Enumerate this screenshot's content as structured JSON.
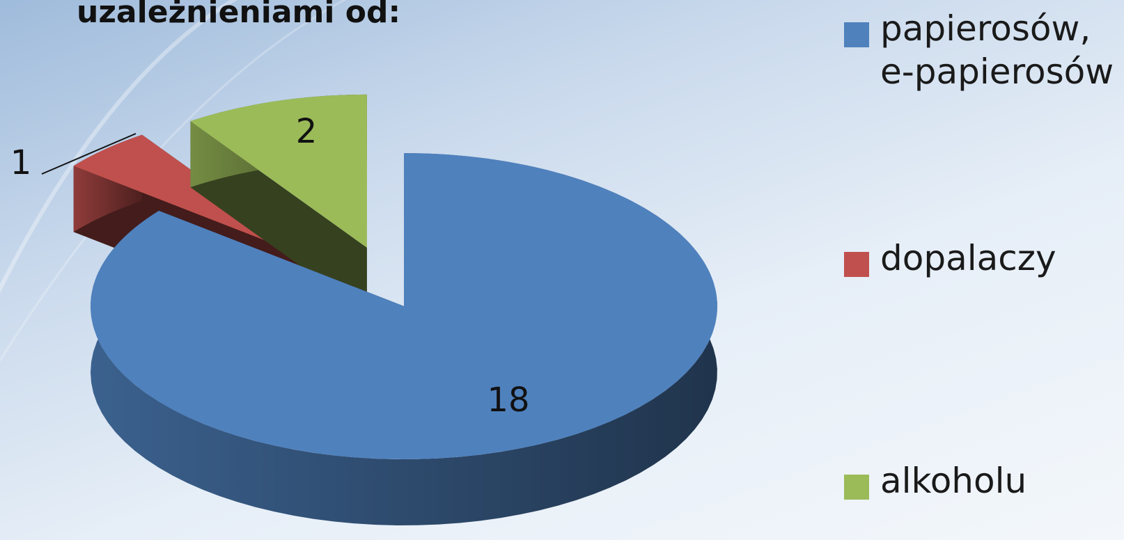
{
  "chart_data": {
    "type": "pie",
    "title": "uzależnieniami od:",
    "categories": [
      "papierosów, e-papierosów",
      "dopalaczy",
      "alkoholu"
    ],
    "values": [
      18,
      1,
      2
    ],
    "colors": [
      "#4f81bd",
      "#c0504d",
      "#9bbb59"
    ],
    "legend": "right"
  }
}
